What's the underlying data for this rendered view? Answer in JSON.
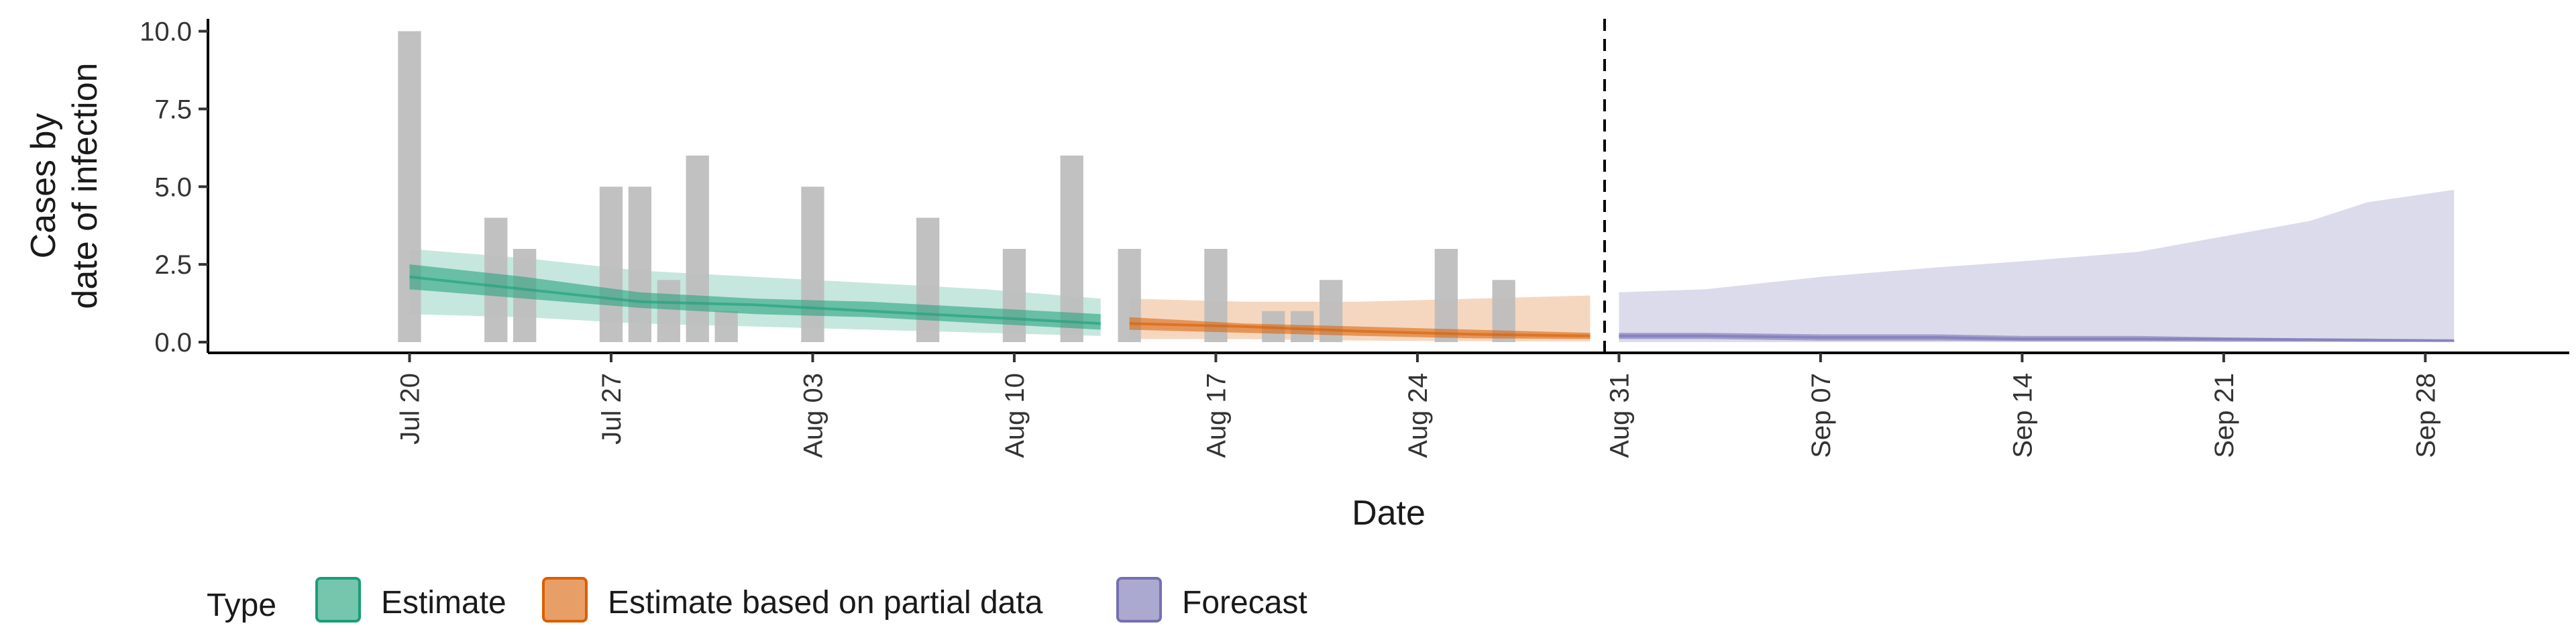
{
  "chart_data": {
    "type": "bar",
    "xlabel": "Date",
    "ylabel_lines": [
      "Cases by",
      "date of infection"
    ],
    "ylim": [
      0,
      10.4
    ],
    "y_ticks": [
      "0.0",
      "2.5",
      "5.0",
      "7.5",
      "10.0"
    ],
    "y_tick_values": [
      0,
      2.5,
      5,
      7.5,
      10
    ],
    "x_domain": [
      "2020-07-13",
      "2020-10-03"
    ],
    "x_ticks": [
      {
        "date": "2020-07-20",
        "label": "Jul 20"
      },
      {
        "date": "2020-07-27",
        "label": "Jul 27"
      },
      {
        "date": "2020-08-03",
        "label": "Aug 03"
      },
      {
        "date": "2020-08-10",
        "label": "Aug 10"
      },
      {
        "date": "2020-08-17",
        "label": "Aug 17"
      },
      {
        "date": "2020-08-24",
        "label": "Aug 24"
      },
      {
        "date": "2020-08-31",
        "label": "Aug 31"
      },
      {
        "date": "2020-09-07",
        "label": "Sep 07"
      },
      {
        "date": "2020-09-14",
        "label": "Sep 14"
      },
      {
        "date": "2020-09-21",
        "label": "Sep 21"
      },
      {
        "date": "2020-09-28",
        "label": "Sep 28"
      }
    ],
    "forecast_cutoff_date": "2020-08-30",
    "reported_cases": [
      {
        "date": "2020-07-20",
        "cases": 10
      },
      {
        "date": "2020-07-23",
        "cases": 4
      },
      {
        "date": "2020-07-24",
        "cases": 3
      },
      {
        "date": "2020-07-27",
        "cases": 5
      },
      {
        "date": "2020-07-28",
        "cases": 5
      },
      {
        "date": "2020-07-29",
        "cases": 2
      },
      {
        "date": "2020-07-30",
        "cases": 6
      },
      {
        "date": "2020-07-31",
        "cases": 1
      },
      {
        "date": "2020-08-03",
        "cases": 5
      },
      {
        "date": "2020-08-07",
        "cases": 4
      },
      {
        "date": "2020-08-10",
        "cases": 3
      },
      {
        "date": "2020-08-12",
        "cases": 6
      },
      {
        "date": "2020-08-14",
        "cases": 3
      },
      {
        "date": "2020-08-17",
        "cases": 3
      },
      {
        "date": "2020-08-19",
        "cases": 1
      },
      {
        "date": "2020-08-20",
        "cases": 1
      },
      {
        "date": "2020-08-21",
        "cases": 2
      },
      {
        "date": "2020-08-25",
        "cases": 3
      },
      {
        "date": "2020-08-27",
        "cases": 2
      }
    ],
    "series": [
      {
        "name": "Estimate",
        "color": "#1b9e77",
        "points": [
          {
            "date": "2020-07-20",
            "median": 2.1,
            "inner": [
              1.7,
              2.5
            ],
            "outer": [
              0.9,
              3.0
            ]
          },
          {
            "date": "2020-07-24",
            "median": 1.7,
            "inner": [
              1.4,
              2.1
            ],
            "outer": [
              0.8,
              2.7
            ]
          },
          {
            "date": "2020-07-28",
            "median": 1.3,
            "inner": [
              1.1,
              1.6
            ],
            "outer": [
              0.6,
              2.3
            ]
          },
          {
            "date": "2020-08-01",
            "median": 1.2,
            "inner": [
              0.9,
              1.4
            ],
            "outer": [
              0.5,
              2.1
            ]
          },
          {
            "date": "2020-08-05",
            "median": 1.0,
            "inner": [
              0.8,
              1.3
            ],
            "outer": [
              0.4,
              1.9
            ]
          },
          {
            "date": "2020-08-09",
            "median": 0.8,
            "inner": [
              0.6,
              1.1
            ],
            "outer": [
              0.3,
              1.7
            ]
          },
          {
            "date": "2020-08-13",
            "median": 0.6,
            "inner": [
              0.4,
              0.9
            ],
            "outer": [
              0.2,
              1.4
            ]
          }
        ]
      },
      {
        "name": "Estimate based on partial data",
        "color": "#d95f02",
        "points": [
          {
            "date": "2020-08-14",
            "median": 0.6,
            "inner": [
              0.4,
              0.8
            ],
            "outer": [
              0.1,
              1.4
            ]
          },
          {
            "date": "2020-08-18",
            "median": 0.5,
            "inner": [
              0.3,
              0.6
            ],
            "outer": [
              0.1,
              1.3
            ]
          },
          {
            "date": "2020-08-22",
            "median": 0.35,
            "inner": [
              0.2,
              0.5
            ],
            "outer": [
              0.05,
              1.3
            ]
          },
          {
            "date": "2020-08-26",
            "median": 0.25,
            "inner": [
              0.12,
              0.4
            ],
            "outer": [
              0.03,
              1.4
            ]
          },
          {
            "date": "2020-08-30",
            "median": 0.2,
            "inner": [
              0.1,
              0.3
            ],
            "outer": [
              0.02,
              1.5
            ]
          }
        ]
      },
      {
        "name": "Forecast",
        "color": "#7570b3",
        "points": [
          {
            "date": "2020-08-31",
            "median": 0.2,
            "inner": [
              0.1,
              0.3
            ],
            "outer": [
              0.0,
              1.6
            ]
          },
          {
            "date": "2020-09-03",
            "median": 0.2,
            "inner": [
              0.1,
              0.3
            ],
            "outer": [
              0.0,
              1.7
            ]
          },
          {
            "date": "2020-09-07",
            "median": 0.15,
            "inner": [
              0.05,
              0.25
            ],
            "outer": [
              0.0,
              2.1
            ]
          },
          {
            "date": "2020-09-11",
            "median": 0.15,
            "inner": [
              0.05,
              0.25
            ],
            "outer": [
              0.0,
              2.4
            ]
          },
          {
            "date": "2020-09-14",
            "median": 0.1,
            "inner": [
              0.03,
              0.2
            ],
            "outer": [
              0.0,
              2.6
            ]
          },
          {
            "date": "2020-09-18",
            "median": 0.1,
            "inner": [
              0.03,
              0.2
            ],
            "outer": [
              0.0,
              2.9
            ]
          },
          {
            "date": "2020-09-21",
            "median": 0.1,
            "inner": [
              0.02,
              0.15
            ],
            "outer": [
              0.0,
              3.4
            ]
          },
          {
            "date": "2020-09-24",
            "median": 0.08,
            "inner": [
              0.02,
              0.12
            ],
            "outer": [
              0.0,
              3.9
            ]
          },
          {
            "date": "2020-09-26",
            "median": 0.07,
            "inner": [
              0.01,
              0.1
            ],
            "outer": [
              0.0,
              4.5
            ]
          },
          {
            "date": "2020-09-29",
            "median": 0.05,
            "inner": [
              0.01,
              0.08
            ],
            "outer": [
              0.0,
              4.9
            ]
          }
        ]
      }
    ],
    "colors": {
      "bars": "#bebebe",
      "axis": "#000000"
    },
    "legend": {
      "position": "bottom",
      "title": "Type",
      "items": [
        "Estimate",
        "Estimate based on partial data",
        "Forecast"
      ]
    }
  }
}
